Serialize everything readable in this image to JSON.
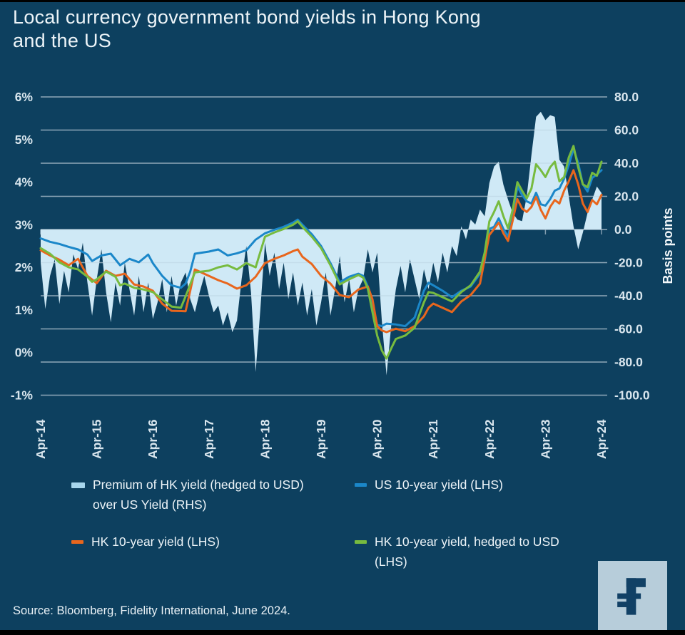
{
  "title": "Local currency government bond yields in Hong Kong\nand the US",
  "source": "Source: Bloomberg, Fidelity International, June 2024.",
  "logo": {
    "name": "fidelity-f-logo",
    "square_color": "#b7cdda",
    "glyph_color": "#114065"
  },
  "colors": {
    "background": "#0d405f",
    "gridline": "#9db3c2",
    "axis_text": "#d9e6ee",
    "area_fill": "#cfe9f6",
    "blue_line": "#1b87c9",
    "orange_line": "#e8661d",
    "green_line": "#77bb3f",
    "legend_area_swatch": "#a7d6ed"
  },
  "legend": {
    "items": [
      {
        "label": "Premium of HK yield (hedged to USD) over US Yield (RHS)",
        "swatch": "area",
        "color": "#a7d6ed"
      },
      {
        "label": "US 10-year yield (LHS)",
        "swatch": "line",
        "color": "#1b87c9"
      },
      {
        "label": "HK 10-year yield (LHS)",
        "swatch": "line",
        "color": "#e8661d"
      },
      {
        "label": "HK 10-year yield, hedged to USD (LHS)",
        "swatch": "line",
        "color": "#77bb3f"
      }
    ]
  },
  "chart_data": {
    "type": "area+line (dual axis)",
    "title": "Local currency government bond yields in Hong Kong and the US",
    "x_axis": {
      "tick_labels": [
        "Apr-14",
        "Apr-15",
        "Apr-16",
        "Apr-17",
        "Apr-18",
        "Apr-19",
        "Apr-20",
        "Apr-21",
        "Apr-22",
        "Apr-23",
        "Apr-24"
      ],
      "tick_months": [
        0,
        12,
        24,
        36,
        48,
        60,
        72,
        84,
        96,
        108,
        120
      ],
      "months_span": 120
    },
    "left_axis": {
      "tick_labels": [
        "6%",
        "5%",
        "4%",
        "3%",
        "2%",
        "1%",
        "0%",
        "-1%"
      ],
      "tick_values": [
        6,
        5,
        4,
        3,
        2,
        1,
        0,
        -1
      ],
      "range": [
        -1,
        6
      ],
      "unit": "percent"
    },
    "right_axis": {
      "label": "Basis points",
      "tick_labels": [
        "80.0",
        "60.0",
        "40.0",
        "20.0",
        "0.0",
        "-20.0",
        "-40.0",
        "-60.0",
        "-80.0",
        "-100.0"
      ],
      "tick_values": [
        80,
        60,
        40,
        20,
        0,
        -20,
        -40,
        -60,
        -80,
        -100
      ],
      "range": [
        -100,
        80
      ],
      "grid": true
    },
    "series": [
      {
        "name": "Premium of HK yield (hedged to USD) over US Yield (RHS)",
        "kind": "area",
        "axis": "right",
        "color": "#cfe9f6",
        "baseline": 0,
        "x_step_months": 1,
        "values": [
          -20,
          -48,
          -28,
          -18,
          -45,
          -25,
          -38,
          -15,
          -24,
          -8,
          -32,
          -52,
          -30,
          -12,
          -38,
          -56,
          -32,
          -46,
          -20,
          -36,
          -52,
          -28,
          -50,
          -32,
          -54,
          -44,
          -30,
          -50,
          -28,
          -46,
          -32,
          -26,
          -42,
          -50,
          -38,
          -28,
          -40,
          -50,
          -46,
          -58,
          -50,
          -62,
          -55,
          -30,
          -10,
          -38,
          -86,
          -48,
          -8,
          -28,
          -14,
          -36,
          -20,
          -42,
          -26,
          -46,
          -32,
          -52,
          -36,
          -58,
          -44,
          -26,
          -52,
          -36,
          -16,
          -44,
          -30,
          -50,
          -36,
          -30,
          -12,
          -26,
          -14,
          -55,
          -88,
          -58,
          -36,
          -22,
          -38,
          -18,
          -30,
          -42,
          -24,
          -36,
          -20,
          -32,
          -14,
          -26,
          -10,
          -16,
          2,
          -6,
          6,
          3,
          12,
          8,
          28,
          38,
          41,
          27,
          18,
          10,
          6,
          5,
          20,
          45,
          68,
          71,
          66,
          69,
          68,
          42,
          38,
          20,
          2,
          -12,
          -2,
          10,
          18,
          26,
          22
        ]
      },
      {
        "name": "US 10-year yield (LHS)",
        "kind": "line",
        "axis": "left",
        "color": "#1b87c9",
        "points": [
          [
            0,
            2.68
          ],
          [
            2,
            2.6
          ],
          [
            4,
            2.55
          ],
          [
            6,
            2.48
          ],
          [
            8,
            2.42
          ],
          [
            10,
            2.3
          ],
          [
            11,
            2.15
          ],
          [
            13,
            2.28
          ],
          [
            15,
            2.32
          ],
          [
            17,
            2.05
          ],
          [
            19,
            2.2
          ],
          [
            21,
            2.12
          ],
          [
            23,
            2.3
          ],
          [
            24,
            2.1
          ],
          [
            26,
            1.8
          ],
          [
            28,
            1.58
          ],
          [
            30,
            1.52
          ],
          [
            31,
            1.62
          ],
          [
            32,
            1.9
          ],
          [
            33,
            2.32
          ],
          [
            36,
            2.37
          ],
          [
            38,
            2.42
          ],
          [
            40,
            2.28
          ],
          [
            42,
            2.33
          ],
          [
            44,
            2.4
          ],
          [
            46,
            2.65
          ],
          [
            48,
            2.8
          ],
          [
            50,
            2.88
          ],
          [
            52,
            2.95
          ],
          [
            54,
            3.05
          ],
          [
            55,
            3.12
          ],
          [
            56,
            3.0
          ],
          [
            58,
            2.78
          ],
          [
            60,
            2.5
          ],
          [
            62,
            2.1
          ],
          [
            64,
            1.65
          ],
          [
            66,
            1.78
          ],
          [
            68,
            1.85
          ],
          [
            69,
            1.8
          ],
          [
            70,
            1.55
          ],
          [
            71,
            1.05
          ],
          [
            72,
            0.65
          ],
          [
            73,
            0.62
          ],
          [
            74,
            0.68
          ],
          [
            76,
            0.66
          ],
          [
            78,
            0.62
          ],
          [
            80,
            0.82
          ],
          [
            82,
            1.45
          ],
          [
            83,
            1.64
          ],
          [
            84,
            1.58
          ],
          [
            86,
            1.45
          ],
          [
            88,
            1.3
          ],
          [
            90,
            1.45
          ],
          [
            92,
            1.55
          ],
          [
            94,
            1.85
          ],
          [
            95,
            2.15
          ],
          [
            96,
            2.9
          ],
          [
            97,
            2.95
          ],
          [
            98,
            3.15
          ],
          [
            99,
            2.9
          ],
          [
            100,
            2.72
          ],
          [
            101,
            3.2
          ],
          [
            102,
            3.9
          ],
          [
            103,
            3.7
          ],
          [
            104,
            3.55
          ],
          [
            105,
            3.5
          ],
          [
            106,
            3.75
          ],
          [
            107,
            3.48
          ],
          [
            108,
            3.45
          ],
          [
            109,
            3.6
          ],
          [
            110,
            3.8
          ],
          [
            111,
            3.85
          ],
          [
            112,
            4.08
          ],
          [
            113,
            4.4
          ],
          [
            114,
            4.78
          ],
          [
            115,
            4.45
          ],
          [
            116,
            3.95
          ],
          [
            117,
            3.78
          ],
          [
            118,
            4.1
          ],
          [
            119,
            4.18
          ],
          [
            120,
            4.28
          ]
        ]
      },
      {
        "name": "HK 10-year yield (LHS)",
        "kind": "line",
        "axis": "left",
        "color": "#e8661d",
        "points": [
          [
            0,
            2.4
          ],
          [
            2,
            2.28
          ],
          [
            4,
            2.18
          ],
          [
            6,
            2.05
          ],
          [
            8,
            2.2
          ],
          [
            10,
            1.8
          ],
          [
            12,
            1.63
          ],
          [
            14,
            1.92
          ],
          [
            16,
            1.8
          ],
          [
            18,
            1.85
          ],
          [
            20,
            1.6
          ],
          [
            22,
            1.55
          ],
          [
            24,
            1.45
          ],
          [
            26,
            1.15
          ],
          [
            28,
            0.98
          ],
          [
            31,
            0.97
          ],
          [
            32,
            1.45
          ],
          [
            33,
            1.95
          ],
          [
            34,
            1.9
          ],
          [
            36,
            1.8
          ],
          [
            38,
            1.7
          ],
          [
            40,
            1.62
          ],
          [
            42,
            1.5
          ],
          [
            44,
            1.58
          ],
          [
            46,
            1.78
          ],
          [
            48,
            2.1
          ],
          [
            50,
            2.2
          ],
          [
            52,
            2.28
          ],
          [
            54,
            2.38
          ],
          [
            55,
            2.42
          ],
          [
            56,
            2.25
          ],
          [
            58,
            2.08
          ],
          [
            60,
            1.8
          ],
          [
            62,
            1.62
          ],
          [
            64,
            1.35
          ],
          [
            66,
            1.3
          ],
          [
            68,
            1.48
          ],
          [
            70,
            1.55
          ],
          [
            71,
            1.25
          ],
          [
            72,
            0.62
          ],
          [
            73,
            0.52
          ],
          [
            74,
            0.48
          ],
          [
            76,
            0.56
          ],
          [
            78,
            0.5
          ],
          [
            80,
            0.62
          ],
          [
            82,
            0.85
          ],
          [
            83,
            1.05
          ],
          [
            84,
            1.15
          ],
          [
            86,
            1.05
          ],
          [
            88,
            0.95
          ],
          [
            90,
            1.2
          ],
          [
            92,
            1.35
          ],
          [
            94,
            1.62
          ],
          [
            95,
            2.2
          ],
          [
            96,
            2.76
          ],
          [
            97,
            2.9
          ],
          [
            98,
            3.05
          ],
          [
            99,
            2.8
          ],
          [
            100,
            2.62
          ],
          [
            101,
            3.1
          ],
          [
            102,
            3.6
          ],
          [
            103,
            3.38
          ],
          [
            104,
            3.3
          ],
          [
            105,
            3.42
          ],
          [
            106,
            3.65
          ],
          [
            107,
            3.35
          ],
          [
            108,
            3.15
          ],
          [
            109,
            3.42
          ],
          [
            110,
            3.58
          ],
          [
            111,
            3.5
          ],
          [
            112,
            3.8
          ],
          [
            113,
            4.02
          ],
          [
            114,
            4.28
          ],
          [
            115,
            3.95
          ],
          [
            116,
            3.5
          ],
          [
            117,
            3.3
          ],
          [
            118,
            3.58
          ],
          [
            119,
            3.48
          ],
          [
            120,
            3.7
          ]
        ]
      },
      {
        "name": "HK 10-year yield, hedged to USD (LHS)",
        "kind": "line",
        "axis": "left",
        "color": "#77bb3f",
        "points": [
          [
            0,
            2.45
          ],
          [
            2,
            2.32
          ],
          [
            4,
            2.12
          ],
          [
            6,
            2.0
          ],
          [
            8,
            1.95
          ],
          [
            10,
            1.78
          ],
          [
            11,
            1.66
          ],
          [
            12,
            1.72
          ],
          [
            14,
            1.9
          ],
          [
            16,
            1.78
          ],
          [
            17,
            1.58
          ],
          [
            18,
            1.62
          ],
          [
            20,
            1.52
          ],
          [
            22,
            1.48
          ],
          [
            24,
            1.42
          ],
          [
            26,
            1.25
          ],
          [
            28,
            1.08
          ],
          [
            30,
            1.05
          ],
          [
            31,
            1.32
          ],
          [
            33,
            1.88
          ],
          [
            36,
            1.92
          ],
          [
            38,
            2.0
          ],
          [
            40,
            2.05
          ],
          [
            42,
            1.95
          ],
          [
            44,
            2.1
          ],
          [
            46,
            2.0
          ],
          [
            48,
            2.72
          ],
          [
            50,
            2.82
          ],
          [
            52,
            2.9
          ],
          [
            54,
            3.0
          ],
          [
            55,
            3.08
          ],
          [
            56,
            2.95
          ],
          [
            58,
            2.72
          ],
          [
            60,
            2.45
          ],
          [
            62,
            2.05
          ],
          [
            64,
            1.6
          ],
          [
            66,
            1.72
          ],
          [
            68,
            1.82
          ],
          [
            69,
            1.76
          ],
          [
            70,
            1.5
          ],
          [
            71,
            0.95
          ],
          [
            72,
            0.4
          ],
          [
            73,
            0.05
          ],
          [
            74,
            -0.14
          ],
          [
            75,
            0.1
          ],
          [
            76,
            0.32
          ],
          [
            78,
            0.4
          ],
          [
            80,
            0.58
          ],
          [
            82,
            1.18
          ],
          [
            83,
            1.42
          ],
          [
            84,
            1.4
          ],
          [
            86,
            1.3
          ],
          [
            88,
            1.2
          ],
          [
            90,
            1.42
          ],
          [
            92,
            1.58
          ],
          [
            94,
            1.9
          ],
          [
            95,
            2.35
          ],
          [
            96,
            3.08
          ],
          [
            97,
            3.3
          ],
          [
            98,
            3.55
          ],
          [
            99,
            3.2
          ],
          [
            100,
            2.92
          ],
          [
            101,
            3.35
          ],
          [
            102,
            4.0
          ],
          [
            103,
            3.8
          ],
          [
            104,
            3.62
          ],
          [
            105,
            3.85
          ],
          [
            106,
            4.42
          ],
          [
            107,
            4.28
          ],
          [
            108,
            4.12
          ],
          [
            109,
            4.35
          ],
          [
            110,
            4.48
          ],
          [
            111,
            4.02
          ],
          [
            112,
            4.12
          ],
          [
            113,
            4.58
          ],
          [
            114,
            4.85
          ],
          [
            115,
            4.35
          ],
          [
            116,
            3.95
          ],
          [
            117,
            3.88
          ],
          [
            118,
            4.22
          ],
          [
            119,
            4.15
          ],
          [
            120,
            4.48
          ]
        ]
      }
    ],
    "legend_position": "bottom"
  }
}
